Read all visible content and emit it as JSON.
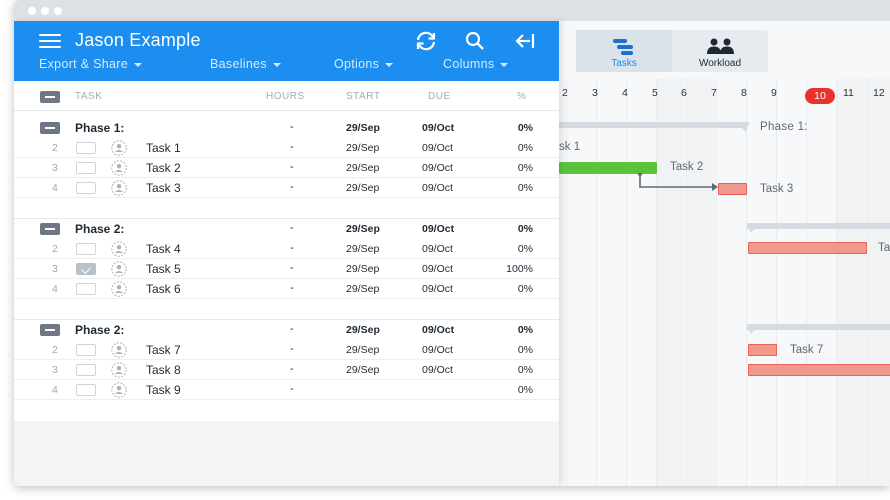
{
  "header": {
    "title": "Jason Example",
    "menus": [
      {
        "label": "Export & Share"
      },
      {
        "label": "Baselines"
      },
      {
        "label": "Options"
      },
      {
        "label": "Columns"
      }
    ]
  },
  "columns": {
    "task": "TASK",
    "hours": "HOURS",
    "start": "START",
    "due": "DUE",
    "pct": "%"
  },
  "groups": [
    {
      "phase": {
        "name": "Phase 1:",
        "hours": "-",
        "start": "29/Sep",
        "due": "09/Oct",
        "pct": "0%"
      },
      "tasks": [
        {
          "num": "2",
          "name": "Task 1",
          "hours": "-",
          "start": "29/Sep",
          "due": "09/Oct",
          "pct": "0%",
          "done": false
        },
        {
          "num": "3",
          "name": "Task 2",
          "hours": "-",
          "start": "29/Sep",
          "due": "09/Oct",
          "pct": "0%",
          "done": false
        },
        {
          "num": "4",
          "name": "Task 3",
          "hours": "-",
          "start": "29/Sep",
          "due": "09/Oct",
          "pct": "0%",
          "done": false
        }
      ]
    },
    {
      "phase": {
        "name": "Phase 2:",
        "hours": "-",
        "start": "29/Sep",
        "due": "09/Oct",
        "pct": "0%"
      },
      "tasks": [
        {
          "num": "2",
          "name": "Task 4",
          "hours": "-",
          "start": "29/Sep",
          "due": "09/Oct",
          "pct": "0%",
          "done": false
        },
        {
          "num": "3",
          "name": "Task 5",
          "hours": "-",
          "start": "29/Sep",
          "due": "09/Oct",
          "pct": "100%",
          "done": true
        },
        {
          "num": "4",
          "name": "Task 6",
          "hours": "-",
          "start": "29/Sep",
          "due": "09/Oct",
          "pct": "0%",
          "done": false
        }
      ]
    },
    {
      "phase": {
        "name": "Phase 2:",
        "hours": "-",
        "start": "29/Sep",
        "due": "09/Oct",
        "pct": "0%"
      },
      "tasks": [
        {
          "num": "2",
          "name": "Task 7",
          "hours": "-",
          "start": "29/Sep",
          "due": "09/Oct",
          "pct": "0%",
          "done": false
        },
        {
          "num": "3",
          "name": "Task 8",
          "hours": "-",
          "start": "29/Sep",
          "due": "09/Oct",
          "pct": "0%",
          "done": false
        },
        {
          "num": "4",
          "name": "Task 9",
          "hours": "-",
          "start": "",
          "due": "",
          "pct": "0%",
          "done": false
        }
      ]
    }
  ],
  "view_tabs": [
    {
      "label": "Tasks",
      "active": true,
      "icon": "tasks-icon"
    },
    {
      "label": "Workload",
      "active": false,
      "icon": "workload-icon"
    }
  ],
  "timeline": {
    "days": [
      "2",
      "3",
      "4",
      "5",
      "6",
      "7",
      "8",
      "9",
      "10",
      "11",
      "12"
    ],
    "today": "10",
    "labels": {
      "phase1": "Phase 1:",
      "task1": "sk 1",
      "task2": "Task 2",
      "task3": "Task 3",
      "task4": "Tas",
      "task7": "Task 7"
    }
  },
  "colors": {
    "header_blue": "#1b8ef0",
    "green_bar": "#5ac43d",
    "red_bar": "#f19a8c",
    "today_red": "#e8322c"
  }
}
